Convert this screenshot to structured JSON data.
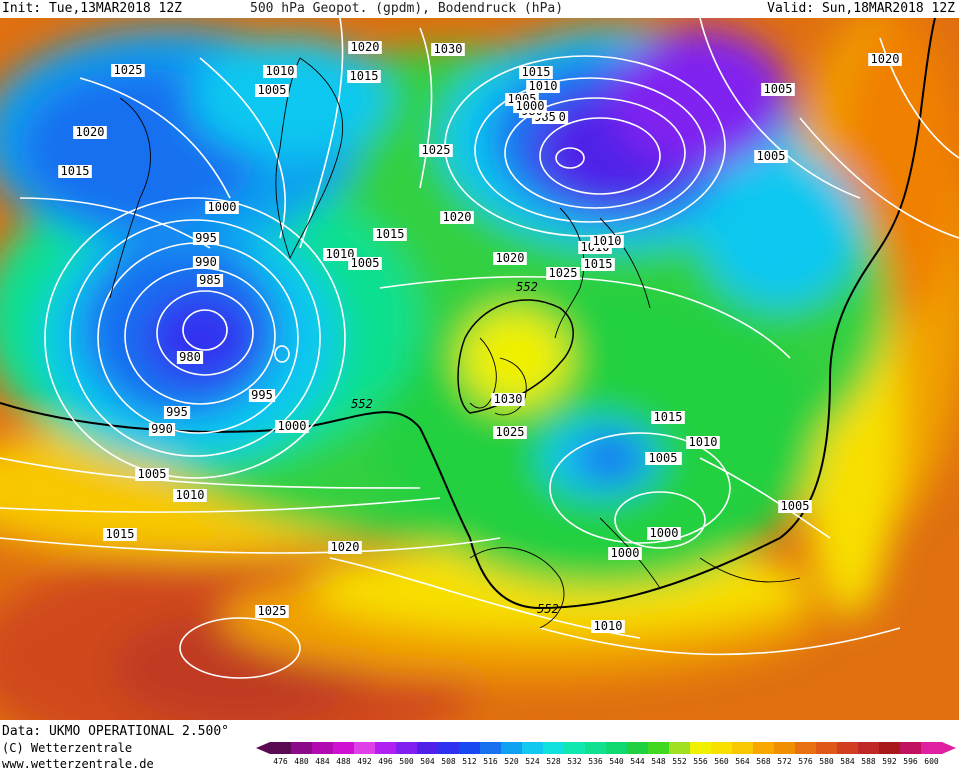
{
  "header": {
    "init": "Init: Tue,13MAR2018 12Z",
    "title": "500 hPa Geopot. (gpdm), Bodendruck (hPa)",
    "valid": "Valid: Sun,18MAR2018 12Z"
  },
  "footer": {
    "source": "Data: UKMO OPERATIONAL 2.500°",
    "copyright": "(C) Wetterzentrale",
    "website": "www.wetterzentrale.de"
  },
  "legend": {
    "values": [
      "476",
      "480",
      "484",
      "488",
      "492",
      "496",
      "500",
      "504",
      "508",
      "512",
      "516",
      "520",
      "524",
      "528",
      "532",
      "536",
      "540",
      "544",
      "548",
      "552",
      "556",
      "560",
      "564",
      "568",
      "572",
      "576",
      "580",
      "584",
      "588",
      "592",
      "596",
      "600"
    ],
    "colors": [
      "#5a0a50",
      "#8a0a8a",
      "#b00ab0",
      "#d010d0",
      "#e040e8",
      "#b020f0",
      "#8020f0",
      "#5020e8",
      "#3030f0",
      "#1848f0",
      "#1870f0",
      "#10a0f0",
      "#10c8f0",
      "#10e0e0",
      "#10e8b0",
      "#10e090",
      "#10d870",
      "#20d040",
      "#40d820",
      "#a0e020",
      "#f0f000",
      "#f8e000",
      "#f8c800",
      "#f8a800",
      "#f09000",
      "#e87010",
      "#e05818",
      "#d04020",
      "#c02828",
      "#a81818",
      "#c01060",
      "#e020a0"
    ]
  },
  "contour_labels": [
    {
      "text": "1025"
    },
    {
      "text": "1020"
    },
    {
      "text": "1015"
    },
    {
      "text": "1010"
    },
    {
      "text": "1005"
    },
    {
      "text": "1000"
    },
    {
      "text": "995"
    },
    {
      "text": "990"
    },
    {
      "text": "985"
    },
    {
      "text": "980"
    },
    {
      "text": "1030"
    },
    {
      "text": "1020"
    },
    {
      "text": "1015"
    },
    {
      "text": "1010"
    },
    {
      "text": "1005"
    },
    {
      "text": "1000"
    },
    {
      "text": "995"
    },
    {
      "text": "990"
    },
    {
      "text": "1025"
    },
    {
      "text": "1020"
    },
    {
      "text": "1015"
    },
    {
      "text": "1010"
    },
    {
      "text": "1005"
    },
    {
      "text": "1000"
    },
    {
      "text": "995"
    },
    {
      "text": "990"
    },
    {
      "text": "985"
    },
    {
      "text": "980"
    },
    {
      "text": "1030"
    },
    {
      "text": "1025"
    },
    {
      "text": "1020"
    },
    {
      "text": "1015"
    },
    {
      "text": "1010"
    },
    {
      "text": "1005"
    },
    {
      "text": "1000"
    },
    {
      "text": "1005"
    },
    {
      "text": "1010"
    },
    {
      "text": "1015"
    },
    {
      "text": "1020"
    },
    {
      "text": "1025"
    },
    {
      "text": "1005"
    },
    {
      "text": "1005"
    },
    {
      "text": "1015"
    },
    {
      "text": "1020"
    },
    {
      "text": "1025"
    },
    {
      "text": "1010"
    },
    {
      "text": "1015"
    },
    {
      "text": "1005"
    },
    {
      "text": "1010"
    },
    {
      "text": "1000"
    },
    {
      "text": "1005"
    },
    {
      "text": "1010"
    },
    {
      "text": "1005"
    }
  ],
  "geopot_labels": [
    {
      "text": "552"
    },
    {
      "text": "552"
    },
    {
      "text": "552"
    }
  ]
}
